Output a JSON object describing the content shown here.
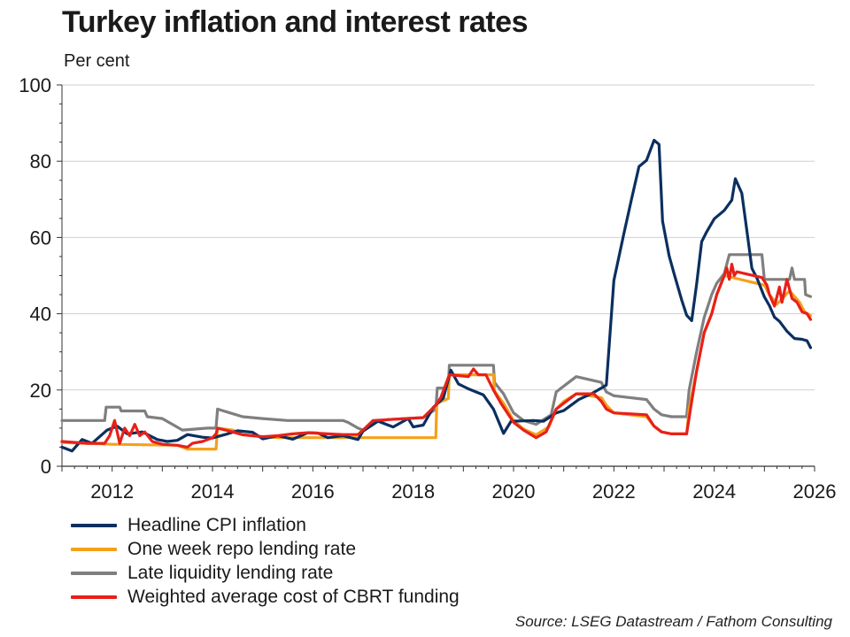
{
  "header": {
    "title": "Turkey inflation and interest rates",
    "subtitle": "Per cent"
  },
  "source": "Source: LSEG Datastream / Fathom Consulting",
  "chart_data": {
    "type": "line",
    "title": "Turkey inflation and interest rates",
    "ylabel": "Per cent",
    "xlabel": "",
    "xlim": [
      2011.0,
      2026.0
    ],
    "ylim": [
      0,
      100
    ],
    "x_ticks": [
      2012,
      2014,
      2016,
      2018,
      2020,
      2022,
      2024,
      2026
    ],
    "y_ticks": [
      0,
      20,
      40,
      60,
      80,
      100
    ],
    "grid": true,
    "legend_position": "bottom",
    "series": [
      {
        "name": "Headline CPI inflation",
        "color": "#0b2f5f",
        "points": [
          [
            2011.0,
            5.0
          ],
          [
            2011.2,
            4.0
          ],
          [
            2011.4,
            7.0
          ],
          [
            2011.6,
            6.0
          ],
          [
            2011.9,
            9.5
          ],
          [
            2012.1,
            10.5
          ],
          [
            2012.3,
            8.5
          ],
          [
            2012.6,
            9.0
          ],
          [
            2012.9,
            7.0
          ],
          [
            2013.1,
            6.5
          ],
          [
            2013.3,
            6.8
          ],
          [
            2013.5,
            8.3
          ],
          [
            2013.8,
            7.6
          ],
          [
            2014.0,
            7.4
          ],
          [
            2014.3,
            8.5
          ],
          [
            2014.5,
            9.3
          ],
          [
            2014.8,
            8.9
          ],
          [
            2015.0,
            7.2
          ],
          [
            2015.3,
            8.0
          ],
          [
            2015.6,
            7.1
          ],
          [
            2015.9,
            8.8
          ],
          [
            2016.1,
            8.7
          ],
          [
            2016.3,
            7.5
          ],
          [
            2016.6,
            8.0
          ],
          [
            2016.9,
            7.0
          ],
          [
            2017.0,
            9.2
          ],
          [
            2017.3,
            11.8
          ],
          [
            2017.6,
            10.3
          ],
          [
            2017.9,
            12.5
          ],
          [
            2018.0,
            10.3
          ],
          [
            2018.2,
            10.8
          ],
          [
            2018.4,
            15.4
          ],
          [
            2018.6,
            17.9
          ],
          [
            2018.75,
            25.2
          ],
          [
            2018.9,
            21.6
          ],
          [
            2019.1,
            20.3
          ],
          [
            2019.4,
            18.7
          ],
          [
            2019.6,
            15.0
          ],
          [
            2019.8,
            8.6
          ],
          [
            2019.95,
            11.8
          ],
          [
            2020.2,
            11.9
          ],
          [
            2020.4,
            12.0
          ],
          [
            2020.6,
            11.8
          ],
          [
            2020.85,
            14.0
          ],
          [
            2021.0,
            14.6
          ],
          [
            2021.3,
            17.5
          ],
          [
            2021.55,
            19.0
          ],
          [
            2021.75,
            20.5
          ],
          [
            2021.85,
            21.3
          ],
          [
            2022.0,
            48.7
          ],
          [
            2022.2,
            61.1
          ],
          [
            2022.35,
            70.0
          ],
          [
            2022.5,
            78.6
          ],
          [
            2022.65,
            80.2
          ],
          [
            2022.8,
            85.5
          ],
          [
            2022.9,
            84.4
          ],
          [
            2022.97,
            64.3
          ],
          [
            2023.1,
            55.2
          ],
          [
            2023.2,
            50.5
          ],
          [
            2023.35,
            43.7
          ],
          [
            2023.45,
            39.6
          ],
          [
            2023.55,
            38.2
          ],
          [
            2023.65,
            47.8
          ],
          [
            2023.75,
            58.9
          ],
          [
            2023.85,
            61.5
          ],
          [
            2024.0,
            64.9
          ],
          [
            2024.2,
            67.1
          ],
          [
            2024.35,
            69.8
          ],
          [
            2024.42,
            75.4
          ],
          [
            2024.55,
            71.6
          ],
          [
            2024.65,
            61.8
          ],
          [
            2024.75,
            51.9
          ],
          [
            2024.85,
            49.4
          ],
          [
            2025.0,
            44.4
          ],
          [
            2025.1,
            42.1
          ],
          [
            2025.2,
            39.1
          ],
          [
            2025.3,
            38.0
          ],
          [
            2025.45,
            35.4
          ],
          [
            2025.6,
            33.5
          ],
          [
            2025.75,
            33.3
          ],
          [
            2025.85,
            32.9
          ],
          [
            2025.92,
            31.1
          ]
        ]
      },
      {
        "name": "One week repo lending rate",
        "color": "#f5a01a",
        "points": [
          [
            2011.0,
            6.25
          ],
          [
            2012.0,
            5.75
          ],
          [
            2013.3,
            5.5
          ],
          [
            2013.5,
            4.5
          ],
          [
            2014.07,
            4.5
          ],
          [
            2014.1,
            10.0
          ],
          [
            2014.4,
            9.5
          ],
          [
            2014.6,
            8.25
          ],
          [
            2015.0,
            7.75
          ],
          [
            2015.3,
            7.5
          ],
          [
            2018.45,
            7.5
          ],
          [
            2018.47,
            16.5
          ],
          [
            2018.7,
            17.75
          ],
          [
            2018.72,
            24.0
          ],
          [
            2019.6,
            24.0
          ],
          [
            2019.62,
            19.75
          ],
          [
            2019.8,
            16.5
          ],
          [
            2020.0,
            12.0
          ],
          [
            2020.2,
            9.75
          ],
          [
            2020.45,
            8.25
          ],
          [
            2020.7,
            10.25
          ],
          [
            2020.85,
            15.0
          ],
          [
            2021.0,
            17.0
          ],
          [
            2021.25,
            19.0
          ],
          [
            2021.75,
            18.0
          ],
          [
            2021.85,
            16.0
          ],
          [
            2022.0,
            14.0
          ],
          [
            2022.65,
            13.0
          ],
          [
            2022.8,
            10.5
          ],
          [
            2022.95,
            9.0
          ],
          [
            2023.15,
            8.5
          ],
          [
            2023.45,
            8.5
          ],
          [
            2023.5,
            15.0
          ],
          [
            2023.65,
            25.0
          ],
          [
            2023.8,
            35.0
          ],
          [
            2023.95,
            40.0
          ],
          [
            2024.05,
            45.0
          ],
          [
            2024.2,
            50.0
          ],
          [
            2025.0,
            47.5
          ],
          [
            2025.1,
            45.0
          ],
          [
            2025.25,
            42.5
          ],
          [
            2025.5,
            46.0
          ],
          [
            2025.7,
            43.0
          ],
          [
            2025.8,
            40.5
          ],
          [
            2025.92,
            39.5
          ]
        ]
      },
      {
        "name": "Late liquidity lending rate",
        "color": "#7f7f7f",
        "points": [
          [
            2011.0,
            12.0
          ],
          [
            2011.85,
            12.0
          ],
          [
            2011.88,
            15.5
          ],
          [
            2012.15,
            15.5
          ],
          [
            2012.18,
            14.5
          ],
          [
            2012.65,
            14.5
          ],
          [
            2012.7,
            13.0
          ],
          [
            2013.0,
            12.5
          ],
          [
            2013.2,
            11.0
          ],
          [
            2013.4,
            9.5
          ],
          [
            2013.9,
            10.0
          ],
          [
            2014.07,
            10.0
          ],
          [
            2014.1,
            15.0
          ],
          [
            2014.35,
            14.0
          ],
          [
            2014.6,
            13.0
          ],
          [
            2015.0,
            12.5
          ],
          [
            2015.5,
            12.0
          ],
          [
            2016.6,
            12.0
          ],
          [
            2016.7,
            11.5
          ],
          [
            2016.9,
            10.0
          ],
          [
            2017.0,
            9.5
          ],
          [
            2017.2,
            11.5
          ],
          [
            2017.5,
            12.25
          ],
          [
            2018.2,
            12.75
          ],
          [
            2018.45,
            15.0
          ],
          [
            2018.48,
            20.5
          ],
          [
            2018.7,
            20.5
          ],
          [
            2018.72,
            26.5
          ],
          [
            2019.6,
            26.5
          ],
          [
            2019.62,
            22.0
          ],
          [
            2019.8,
            19.0
          ],
          [
            2020.0,
            14.0
          ],
          [
            2020.2,
            12.0
          ],
          [
            2020.45,
            11.0
          ],
          [
            2020.75,
            13.5
          ],
          [
            2020.85,
            19.5
          ],
          [
            2021.05,
            21.5
          ],
          [
            2021.25,
            23.5
          ],
          [
            2021.75,
            22.0
          ],
          [
            2021.85,
            19.5
          ],
          [
            2022.0,
            18.5
          ],
          [
            2022.65,
            17.5
          ],
          [
            2022.8,
            15.0
          ],
          [
            2022.95,
            13.5
          ],
          [
            2023.15,
            13.0
          ],
          [
            2023.45,
            13.0
          ],
          [
            2023.5,
            20.0
          ],
          [
            2023.65,
            30.0
          ],
          [
            2023.8,
            39.0
          ],
          [
            2023.95,
            45.0
          ],
          [
            2024.05,
            48.0
          ],
          [
            2024.2,
            50.5
          ],
          [
            2024.3,
            55.5
          ],
          [
            2024.95,
            55.5
          ],
          [
            2025.0,
            49.0
          ],
          [
            2025.5,
            49.0
          ],
          [
            2025.55,
            52.0
          ],
          [
            2025.6,
            49.0
          ],
          [
            2025.8,
            49.0
          ],
          [
            2025.82,
            45.0
          ],
          [
            2025.92,
            44.5
          ]
        ]
      },
      {
        "name": "Weighted average cost of CBRT funding",
        "color": "#e8201a",
        "points": [
          [
            2011.0,
            6.5
          ],
          [
            2011.5,
            6.0
          ],
          [
            2011.85,
            6.0
          ],
          [
            2011.95,
            8.0
          ],
          [
            2012.05,
            12.0
          ],
          [
            2012.15,
            6.0
          ],
          [
            2012.25,
            10.0
          ],
          [
            2012.35,
            8.0
          ],
          [
            2012.45,
            11.0
          ],
          [
            2012.55,
            8.0
          ],
          [
            2012.65,
            9.0
          ],
          [
            2012.8,
            6.5
          ],
          [
            2013.0,
            5.75
          ],
          [
            2013.3,
            5.5
          ],
          [
            2013.5,
            5.0
          ],
          [
            2013.6,
            6.0
          ],
          [
            2013.8,
            6.5
          ],
          [
            2014.0,
            7.5
          ],
          [
            2014.07,
            8.5
          ],
          [
            2014.1,
            10.0
          ],
          [
            2014.4,
            9.0
          ],
          [
            2014.6,
            8.25
          ],
          [
            2015.0,
            7.75
          ],
          [
            2015.3,
            8.0
          ],
          [
            2015.6,
            8.5
          ],
          [
            2015.9,
            8.8
          ],
          [
            2016.3,
            8.5
          ],
          [
            2016.6,
            8.3
          ],
          [
            2016.9,
            8.3
          ],
          [
            2017.0,
            9.5
          ],
          [
            2017.2,
            12.0
          ],
          [
            2018.2,
            12.75
          ],
          [
            2018.45,
            16.0
          ],
          [
            2018.55,
            18.0
          ],
          [
            2018.72,
            24.0
          ],
          [
            2019.1,
            23.5
          ],
          [
            2019.2,
            25.5
          ],
          [
            2019.3,
            24.0
          ],
          [
            2019.45,
            24.0
          ],
          [
            2019.6,
            20.0
          ],
          [
            2019.75,
            16.5
          ],
          [
            2020.0,
            11.5
          ],
          [
            2020.2,
            9.5
          ],
          [
            2020.45,
            7.5
          ],
          [
            2020.65,
            9.0
          ],
          [
            2020.85,
            15.0
          ],
          [
            2021.05,
            17.0
          ],
          [
            2021.25,
            19.0
          ],
          [
            2021.6,
            19.0
          ],
          [
            2021.75,
            17.0
          ],
          [
            2021.85,
            15.0
          ],
          [
            2022.0,
            14.0
          ],
          [
            2022.65,
            13.5
          ],
          [
            2022.8,
            10.5
          ],
          [
            2022.95,
            9.0
          ],
          [
            2023.15,
            8.5
          ],
          [
            2023.45,
            8.5
          ],
          [
            2023.55,
            17.0
          ],
          [
            2023.65,
            25.0
          ],
          [
            2023.8,
            35.0
          ],
          [
            2023.95,
            40.0
          ],
          [
            2024.05,
            45.0
          ],
          [
            2024.2,
            50.0
          ],
          [
            2024.25,
            52.0
          ],
          [
            2024.3,
            49.0
          ],
          [
            2024.35,
            53.0
          ],
          [
            2024.4,
            50.0
          ],
          [
            2024.45,
            51.0
          ],
          [
            2024.95,
            49.5
          ],
          [
            2025.05,
            47.5
          ],
          [
            2025.1,
            45.0
          ],
          [
            2025.2,
            42.0
          ],
          [
            2025.3,
            47.0
          ],
          [
            2025.35,
            43.0
          ],
          [
            2025.45,
            49.0
          ],
          [
            2025.55,
            44.0
          ],
          [
            2025.65,
            43.0
          ],
          [
            2025.75,
            40.5
          ],
          [
            2025.85,
            40.0
          ],
          [
            2025.92,
            38.5
          ]
        ]
      }
    ]
  }
}
